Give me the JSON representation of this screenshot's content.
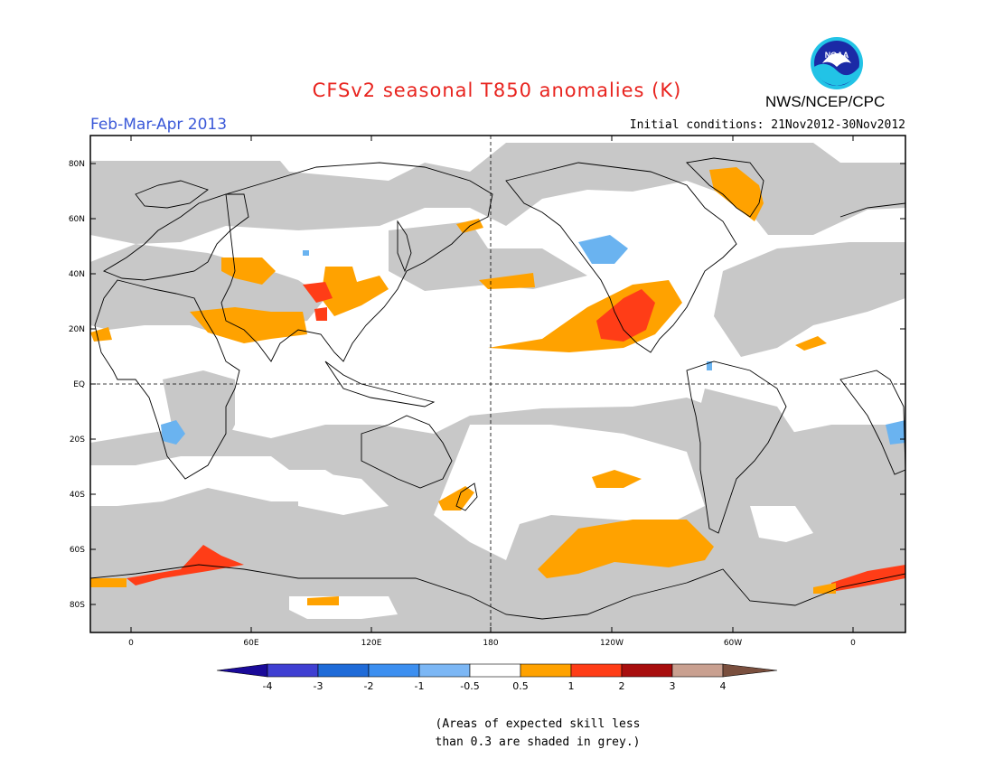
{
  "title": "CFSv2 seasonal T850 anomalies (K)",
  "agency": "NWS/NCEP/CPC",
  "logo_text": "NOAA",
  "season": "Feb-Mar-Apr 2013",
  "initial_conditions": "Initial conditions: 21Nov2012-30Nov2012",
  "map": {
    "lat_labels": [
      "80N",
      "60N",
      "40N",
      "20N",
      "EQ",
      "20S",
      "40S",
      "60S",
      "80S"
    ],
    "lon_labels": [
      "0",
      "60E",
      "120E",
      "180",
      "120W",
      "60W",
      "0"
    ],
    "colors": {
      "skill_grey": "#c8c8c8",
      "ocean_land": "#ffffff",
      "warm_1": "#ffa200",
      "warm_2": "#ff3d17",
      "cool_1": "#6ab3f0"
    }
  },
  "colorbar": {
    "labels": [
      "-4",
      "-3",
      "-2",
      "-1",
      "-0.5",
      "0.5",
      "1",
      "2",
      "3",
      "4"
    ],
    "colors": [
      "#1a0a99",
      "#3f3fd2",
      "#1f6bd8",
      "#3c8ff0",
      "#7cb7f5",
      "#ffffff",
      "#ffa200",
      "#ff3d17",
      "#a80e0e",
      "#c9a090",
      "#7a4f3e"
    ]
  },
  "note_line1": "(Areas of expected skill less",
  "note_line2": "than 0.3 are shaded in grey.)"
}
